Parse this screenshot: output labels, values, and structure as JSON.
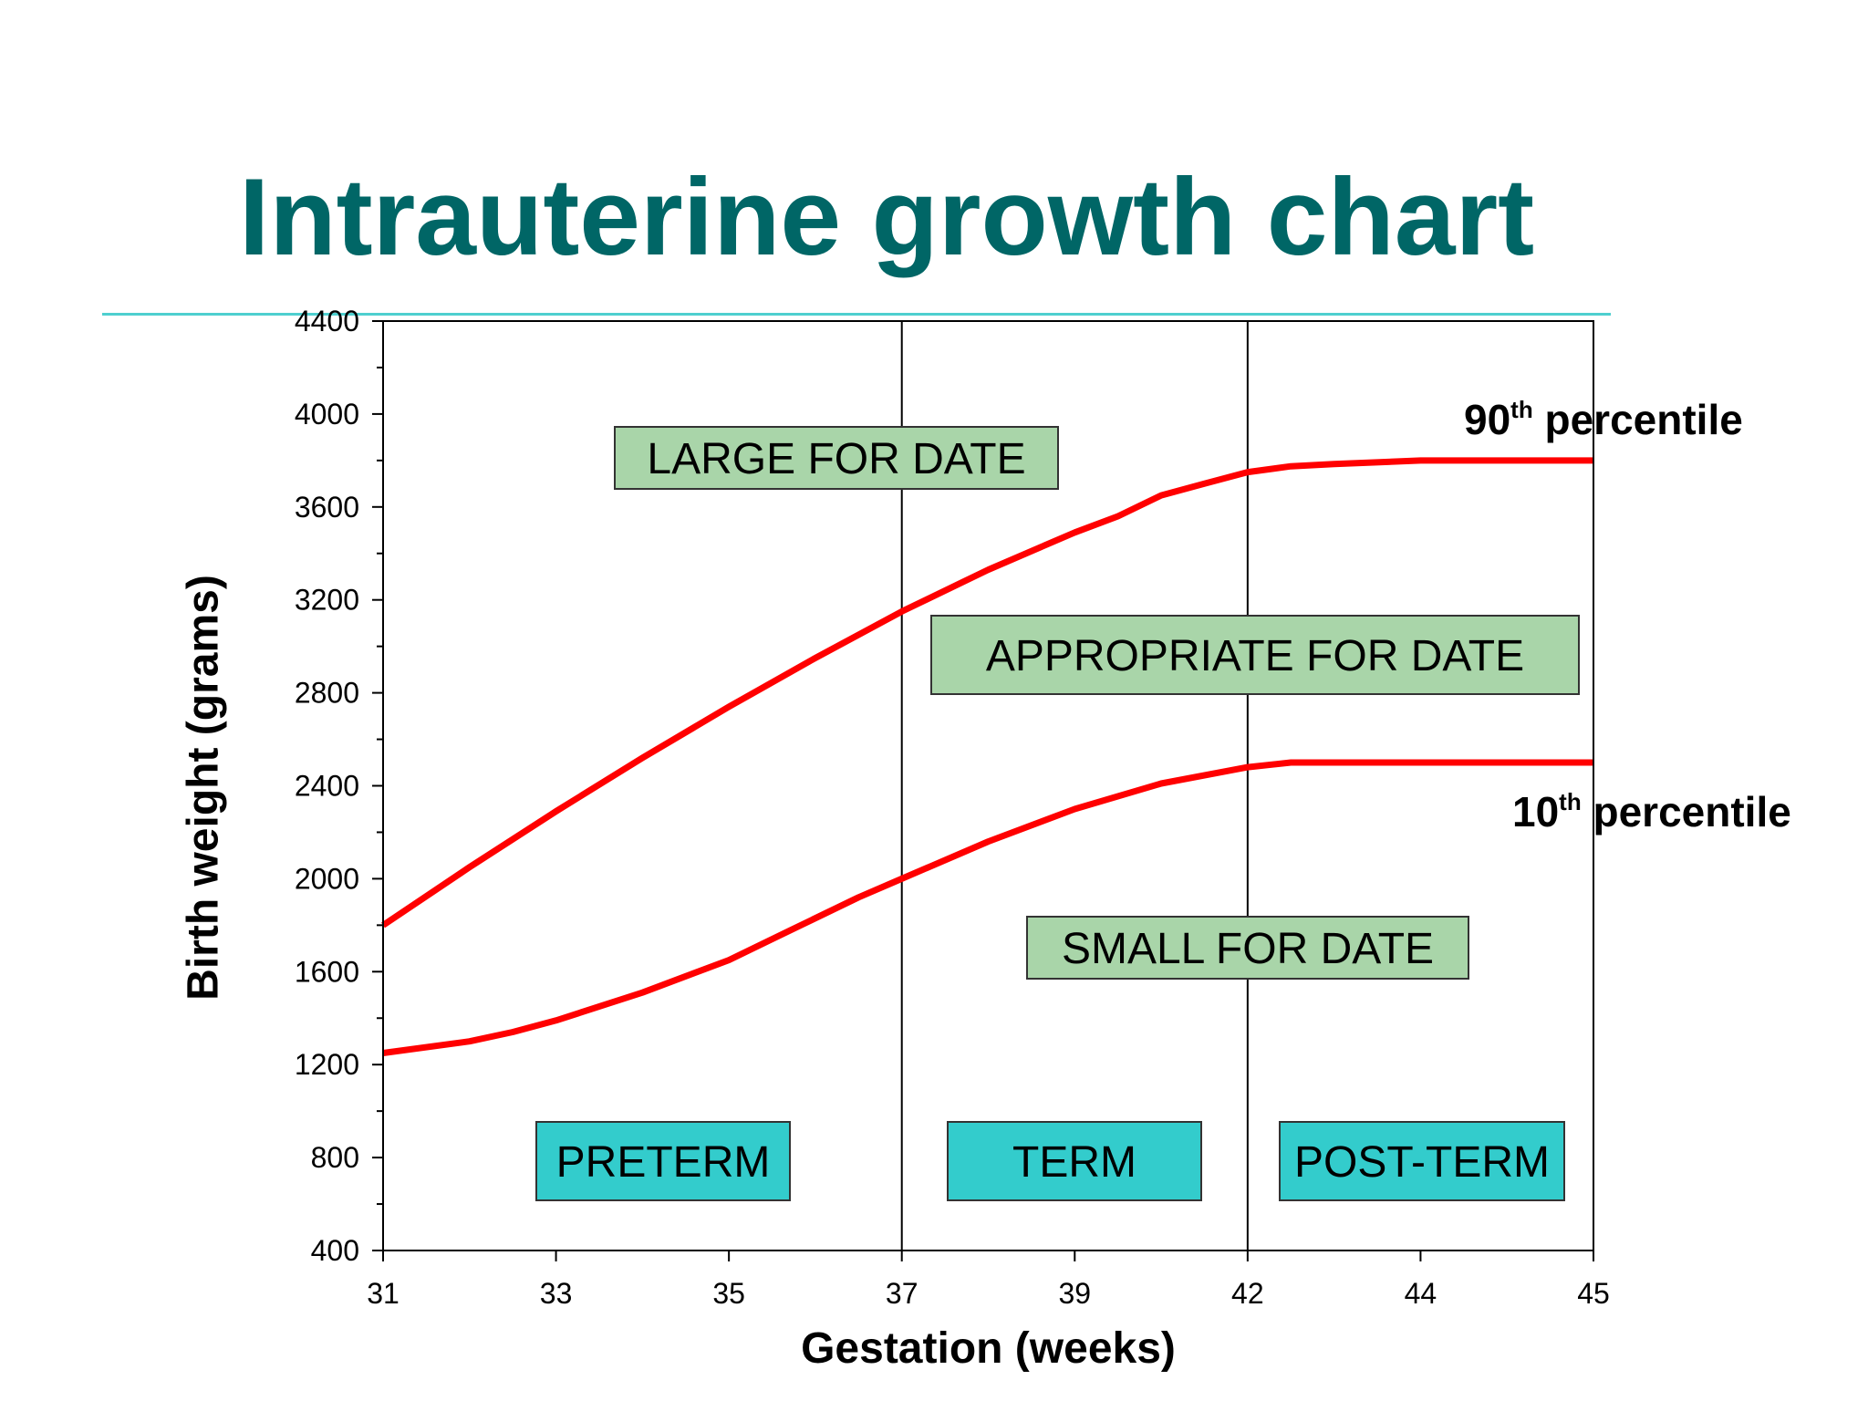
{
  "slide": {
    "title": "Intrauterine growth chart",
    "title_color": "#006666",
    "rule_color": "#4ECFCF"
  },
  "chart_data": {
    "type": "line",
    "xlabel": "Gestation (weeks)",
    "ylabel": "Birth weight (grams)",
    "x_ticks": [
      31,
      33,
      35,
      37,
      39,
      42,
      44,
      45
    ],
    "y_ticks": [
      400,
      800,
      1200,
      1600,
      2000,
      2400,
      2800,
      3200,
      3600,
      4000,
      4400
    ],
    "ylim": [
      400,
      4400
    ],
    "grid": false,
    "boundaries_at_ticks": [
      "37",
      "42"
    ],
    "line_color": "#FF0000",
    "series": [
      {
        "key": "p90",
        "label_main": "90",
        "label_sup": "th",
        "label_rest": " percentile",
        "points": [
          [
            0,
            1800
          ],
          [
            0.5,
            2050
          ],
          [
            1,
            2290
          ],
          [
            1.5,
            2520
          ],
          [
            2,
            2740
          ],
          [
            2.5,
            2950
          ],
          [
            3,
            3150
          ],
          [
            3.5,
            3330
          ],
          [
            4,
            3490
          ],
          [
            4.25,
            3560
          ],
          [
            4.5,
            3650
          ],
          [
            4.75,
            3700
          ],
          [
            5,
            3750
          ],
          [
            5.25,
            3775
          ],
          [
            5.5,
            3785
          ],
          [
            6,
            3800
          ],
          [
            7,
            3800
          ]
        ]
      },
      {
        "key": "p10",
        "label_main": "10",
        "label_sup": "th",
        "label_rest": " percentile",
        "points": [
          [
            0,
            1250
          ],
          [
            0.5,
            1300
          ],
          [
            0.75,
            1340
          ],
          [
            1,
            1390
          ],
          [
            1.5,
            1510
          ],
          [
            2,
            1650
          ],
          [
            2.25,
            1740
          ],
          [
            2.75,
            1920
          ],
          [
            3,
            2000
          ],
          [
            3.5,
            2160
          ],
          [
            4,
            2300
          ],
          [
            4.5,
            2410
          ],
          [
            5,
            2480
          ],
          [
            5.25,
            2500
          ],
          [
            6,
            2500
          ],
          [
            7,
            2500
          ]
        ]
      }
    ],
    "zones": [
      {
        "key": "large",
        "label": "LARGE FOR DATE",
        "fill": "#A9D5A9"
      },
      {
        "key": "appropriate",
        "label": "APPROPRIATE FOR DATE",
        "fill": "#A9D5A9"
      },
      {
        "key": "small",
        "label": "SMALL FOR DATE",
        "fill": "#A9D5A9"
      },
      {
        "key": "preterm",
        "label": "PRETERM",
        "fill": "#33CCCC"
      },
      {
        "key": "term",
        "label": "TERM",
        "fill": "#33CCCC"
      },
      {
        "key": "postterm",
        "label": "POST-TERM",
        "fill": "#33CCCC"
      }
    ]
  }
}
